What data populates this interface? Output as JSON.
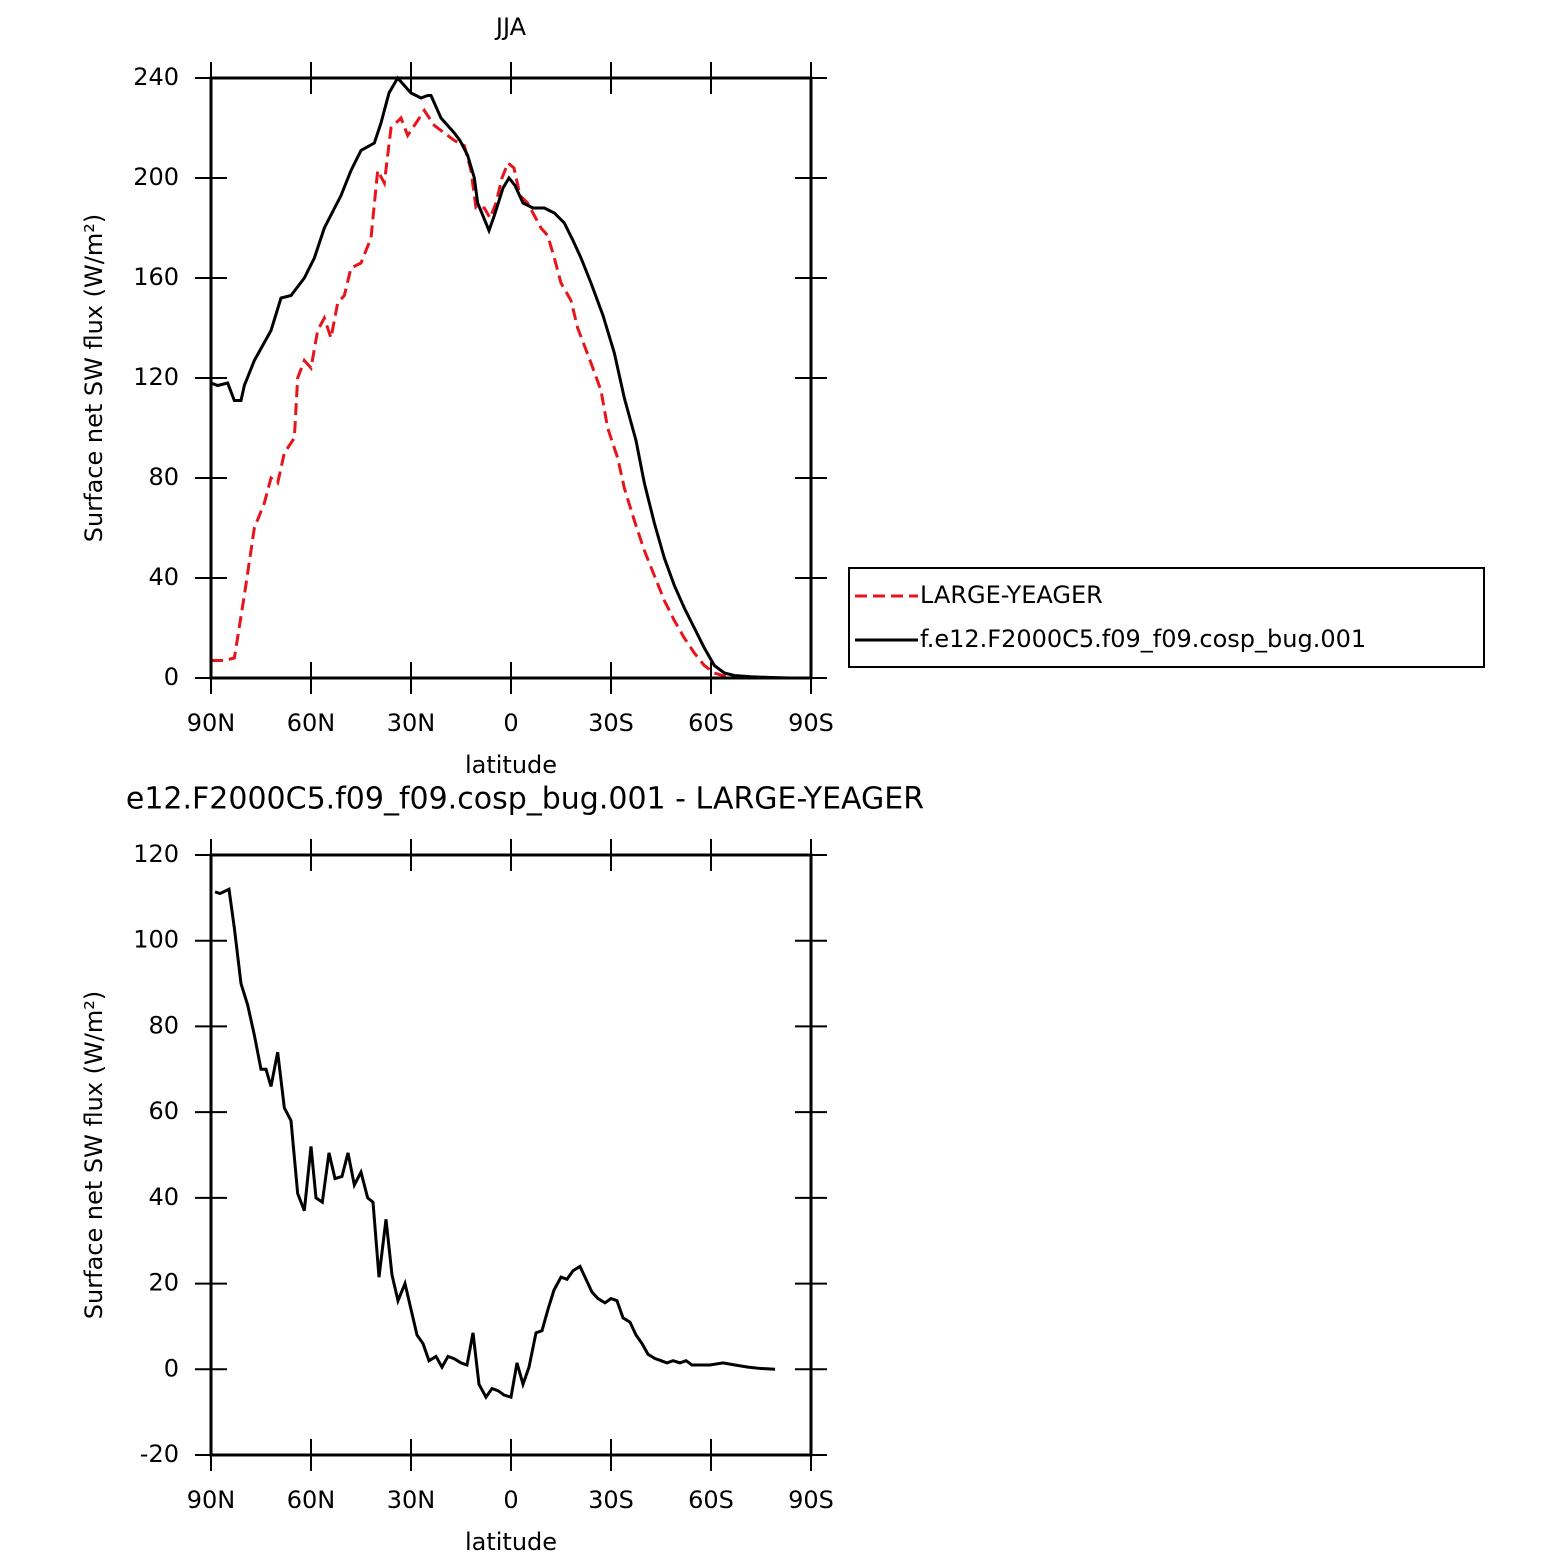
{
  "chart_data": [
    {
      "type": "line",
      "title": "JJA",
      "x_label": "latitude",
      "y_label": "Surface net SW flux (W/m²)",
      "xlim": [
        90,
        -90
      ],
      "xticks": [
        {
          "value": 90,
          "label": "90N"
        },
        {
          "value": 60,
          "label": "60N"
        },
        {
          "value": 30,
          "label": "30N"
        },
        0,
        {
          "value": -30,
          "label": "30S"
        },
        {
          "value": -60,
          "label": "60S"
        },
        {
          "value": -90,
          "label": "90S"
        }
      ],
      "ylim": [
        0,
        240
      ],
      "yticks": [
        0,
        40,
        80,
        120,
        160,
        200,
        240
      ],
      "legend": "right",
      "series": [
        {
          "name": "LARGE-YEAGER",
          "color": "#e8141c",
          "line_style": "dashed",
          "x": [
            90,
            86,
            83,
            80,
            77,
            74,
            72,
            70,
            68,
            65,
            64,
            62,
            60,
            58,
            56,
            54,
            52,
            50,
            48,
            45,
            42,
            40,
            38,
            36,
            33,
            31,
            29,
            26,
            23,
            20,
            17,
            14,
            12,
            10.5,
            8,
            6.3,
            4.5,
            2.7,
            0.9,
            -0.9,
            -2.7,
            -5,
            -7,
            -9,
            -11,
            -13,
            -15,
            -18,
            -20,
            -22,
            -24,
            -27,
            -29,
            -32,
            -34,
            -37,
            -40,
            -43,
            -46,
            -49,
            -52,
            -55,
            -58,
            -61,
            -64,
            -69,
            -75,
            -81,
            -87
          ],
          "values": [
            7,
            7,
            8,
            33,
            60,
            70,
            80,
            78,
            90,
            96,
            120,
            127,
            124,
            139,
            144,
            136,
            150,
            153,
            164,
            166,
            176,
            203,
            198,
            220,
            224,
            217,
            221,
            227,
            221,
            218,
            215,
            213,
            203,
            188,
            188,
            184,
            190,
            200,
            206,
            204,
            193,
            190,
            185,
            180,
            177,
            168,
            158,
            151,
            140,
            133,
            126,
            115,
            100,
            88,
            76,
            63,
            51,
            41,
            31,
            23,
            16,
            10,
            5,
            2,
            0.8,
            0.3,
            0.1,
            0,
            0
          ]
        },
        {
          "name": "f.e12.F2000C5.f09_f09.cosp_bug.001",
          "color": "#000000",
          "line_style": "solid",
          "x": [
            90,
            88,
            85,
            83,
            81,
            80,
            77,
            72,
            69,
            66,
            62,
            59,
            56,
            51,
            48,
            45,
            41,
            39,
            36.6,
            34,
            32,
            30,
            27,
            25,
            24,
            21,
            17,
            15.3,
            13,
            11,
            10,
            6.6,
            5,
            2.4,
            0.6,
            -1.2,
            -3.6,
            -6.6,
            -10,
            -13,
            -16,
            -18.6,
            -21,
            -24,
            -27.6,
            -31,
            -34,
            -37.5,
            -40,
            -43,
            -46,
            -49,
            -52,
            -55,
            -58,
            -61,
            -64,
            -67,
            -72,
            -78,
            -84,
            -87
          ],
          "values": [
            118,
            117,
            118,
            111,
            111,
            117,
            127,
            139,
            152,
            153,
            160,
            168,
            180,
            193,
            203,
            211,
            214,
            222,
            234,
            240,
            237,
            234,
            232,
            233,
            233,
            224,
            218,
            215,
            209,
            200,
            190,
            179,
            185,
            196,
            200,
            197,
            190,
            188,
            188,
            186,
            182,
            175,
            168,
            158,
            145,
            130,
            112,
            95,
            78,
            62,
            48,
            37,
            28,
            20,
            12,
            5,
            2,
            1,
            0.5,
            0.2,
            0,
            0
          ]
        }
      ]
    },
    {
      "type": "line",
      "title": "e12.F2000C5.f09_f09.cosp_bug.001 - LARGE-YEAGER",
      "x_label": "latitude",
      "y_label": "Surface net SW flux (W/m²)",
      "xlim": [
        90,
        -90
      ],
      "xticks": [
        {
          "value": 90,
          "label": "90N"
        },
        {
          "value": 60,
          "label": "60N"
        },
        {
          "value": 30,
          "label": "30N"
        },
        0,
        {
          "value": -30,
          "label": "30S"
        },
        {
          "value": -60,
          "label": "60S"
        },
        {
          "value": -90,
          "label": "90S"
        }
      ],
      "ylim": [
        -20,
        120
      ],
      "yticks": [
        -20,
        0,
        20,
        40,
        60,
        80,
        100,
        120
      ],
      "series": [
        {
          "color": "#000000",
          "line_style": "solid",
          "x": [
            88.8,
            87.3,
            84.6,
            83,
            81,
            79,
            77,
            75,
            73.5,
            72,
            70,
            68,
            66,
            64,
            62,
            60,
            58.5,
            56.6,
            54.6,
            52.8,
            50.7,
            48.9,
            47,
            45,
            43,
            41.4,
            39.6,
            37.5,
            35.7,
            33.9,
            31.8,
            30,
            28.2,
            26.4,
            24.6,
            22.5,
            20.7,
            18.9,
            17.1,
            15,
            13.2,
            11.4,
            9.6,
            7.5,
            5.7,
            3.9,
            2.1,
            0,
            -1.8,
            -3.6,
            -5.4,
            -7.5,
            -9.3,
            -11.1,
            -12.9,
            -15,
            -16.8,
            -18.6,
            -20.7,
            -22.5,
            -24.3,
            -26.1,
            -28.2,
            -30,
            -31.8,
            -33.6,
            -35.7,
            -37.5,
            -39.3,
            -41.1,
            -43.2,
            -45,
            -46.8,
            -48.6,
            -50.7,
            -52.5,
            -54.3,
            -56.1,
            -59.7,
            -63.6,
            -67.2,
            -71.1,
            -74.7,
            -79.2
          ],
          "values": [
            111.4,
            111,
            112,
            103,
            90,
            85,
            78,
            70,
            70,
            66,
            74,
            61,
            58,
            41,
            37,
            52,
            40,
            39,
            50.5,
            44.5,
            45,
            50.5,
            43,
            46,
            40,
            39,
            21.5,
            35,
            22,
            16,
            20,
            14,
            8,
            6,
            2,
            3,
            0.5,
            3,
            2.5,
            1.5,
            1,
            8.5,
            -3.5,
            -6.5,
            -4.5,
            -5,
            -6,
            -6.5,
            1.5,
            -3.5,
            0.5,
            8.5,
            9,
            14,
            18.5,
            21.5,
            21,
            23,
            24,
            21,
            18,
            16.5,
            15.5,
            16.5,
            16,
            12,
            11,
            8,
            6,
            3.5,
            2.5,
            2,
            1.5,
            2,
            1.5,
            2,
            1,
            1,
            1,
            1.5,
            1,
            0.5,
            0.2,
            0
          ]
        }
      ]
    }
  ]
}
